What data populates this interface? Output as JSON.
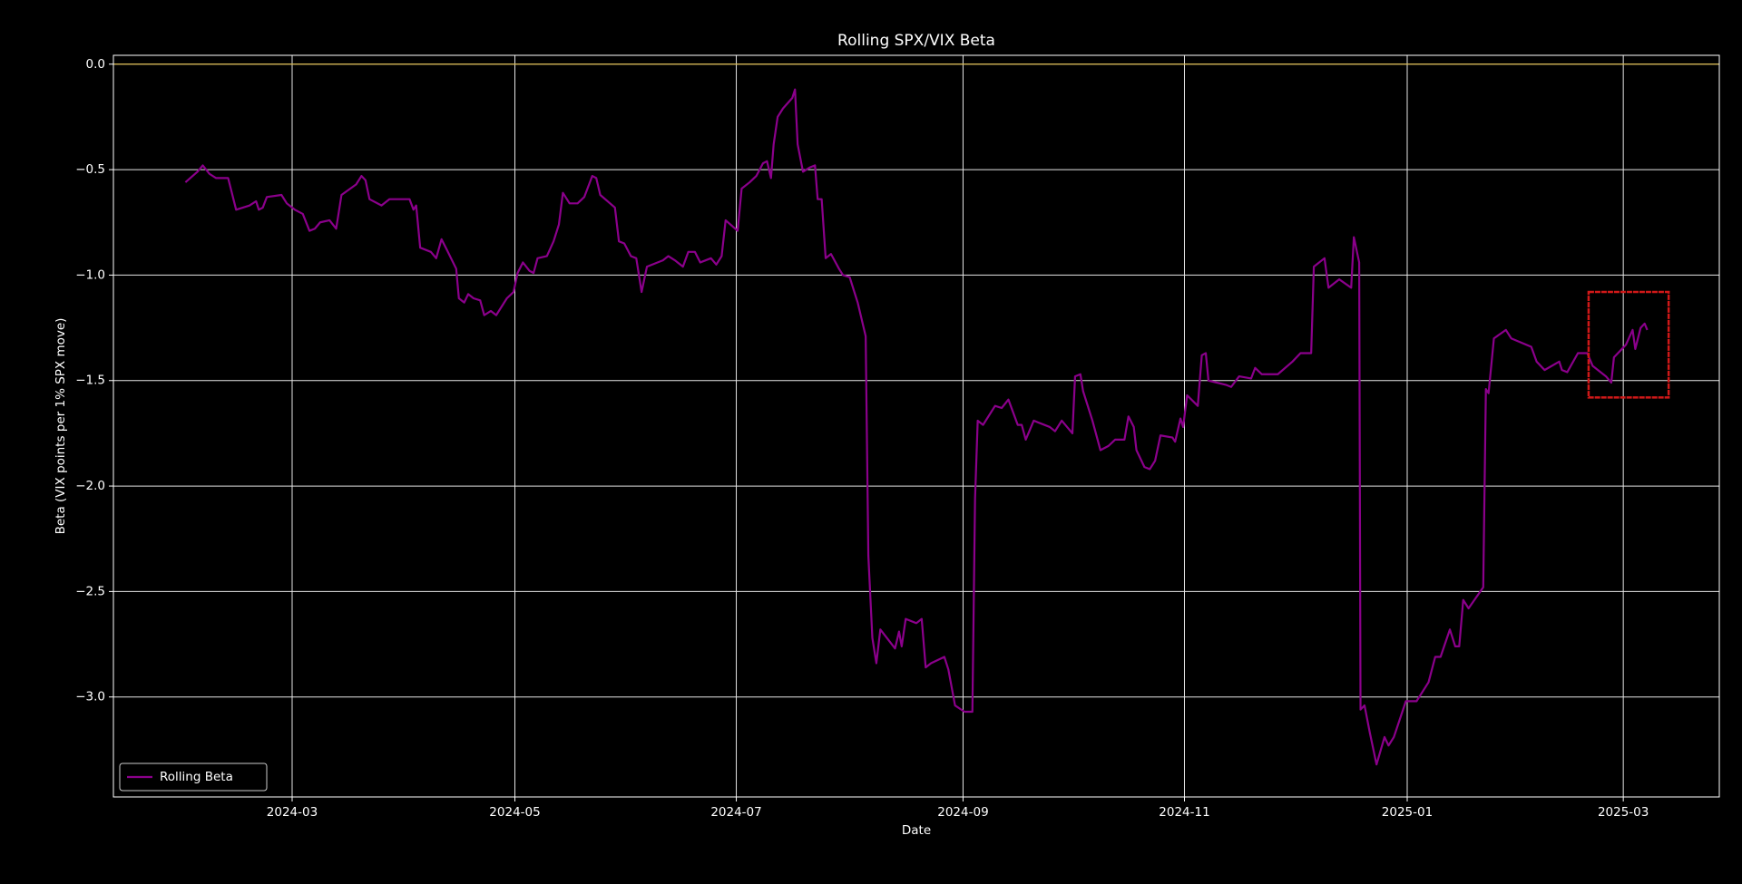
{
  "chart_data": {
    "type": "line",
    "title": "Rolling SPX/VIX Beta",
    "xlabel": "Date",
    "ylabel": "Beta (VIX points per 1% SPX move)",
    "xlim": [
      2024.03,
      2025.234
    ],
    "ylim": [
      -3.474,
      0.042
    ],
    "xticks": [
      {
        "value": 2024.164,
        "label": "2024-03"
      },
      {
        "value": 2024.331,
        "label": "2024-05"
      },
      {
        "value": 2024.497,
        "label": "2024-07"
      },
      {
        "value": 2024.667,
        "label": "2024-09"
      },
      {
        "value": 2024.833,
        "label": "2024-11"
      },
      {
        "value": 2025.0,
        "label": "2025-01"
      },
      {
        "value": 2025.162,
        "label": "2025-03"
      }
    ],
    "yticks": [
      {
        "value": 0,
        "label": "0.0"
      },
      {
        "value": -0.5,
        "label": "−0.5"
      },
      {
        "value": -1.0,
        "label": "−1.0"
      },
      {
        "value": -1.5,
        "label": "−1.5"
      },
      {
        "value": -2.0,
        "label": "−2.0"
      },
      {
        "value": -2.5,
        "label": "−2.5"
      },
      {
        "value": -3.0,
        "label": "−3.0"
      }
    ],
    "grid": true,
    "legend": "lower left",
    "hline": {
      "value": 0,
      "color": "#d4b44a"
    },
    "highlight": {
      "xlim": [
        2025.136,
        2025.196
      ],
      "ylim": [
        -1.58,
        -1.08
      ],
      "color": "#d01818"
    },
    "x": [
      2024.084,
      2024.093,
      2024.097,
      2024.102,
      2024.107,
      2024.116,
      2024.12,
      2024.122,
      2024.132,
      2024.137,
      2024.139,
      2024.142,
      2024.145,
      2024.156,
      2024.16,
      2024.166,
      2024.172,
      2024.177,
      2024.181,
      2024.185,
      2024.192,
      2024.197,
      2024.201,
      2024.212,
      2024.216,
      2024.219,
      2024.222,
      2024.231,
      2024.237,
      2024.252,
      2024.255,
      2024.257,
      2024.26,
      2024.268,
      2024.272,
      2024.276,
      2024.28,
      2024.287,
      2024.289,
      2024.293,
      2024.296,
      2024.3,
      2024.305,
      2024.308,
      2024.313,
      2024.317,
      2024.325,
      2024.33,
      2024.333,
      2024.337,
      2024.342,
      2024.345,
      2024.348,
      2024.355,
      2024.36,
      2024.364,
      2024.367,
      2024.372,
      2024.378,
      2024.383,
      2024.389,
      2024.392,
      2024.395,
      2024.406,
      2024.409,
      2024.413,
      2024.418,
      2024.422,
      2024.426,
      2024.43,
      2024.442,
      2024.446,
      2024.451,
      2024.457,
      2024.461,
      2024.466,
      2024.47,
      2024.478,
      2024.482,
      2024.486,
      2024.489,
      2024.498,
      2024.501,
      2024.507,
      2024.512,
      2024.517,
      2024.52,
      2024.523,
      2024.525,
      2024.528,
      2024.532,
      2024.539,
      2024.541,
      2024.543,
      2024.547,
      2024.552,
      2024.556,
      2024.558,
      2024.561,
      2024.564,
      2024.568,
      2024.574,
      2024.577,
      2024.582,
      2024.588,
      2024.594,
      2024.596,
      2024.599,
      2024.602,
      2024.605,
      2024.616,
      2024.619,
      2024.621,
      2024.624,
      2024.632,
      2024.636,
      2024.639,
      2024.643,
      2024.653,
      2024.656,
      2024.661,
      2024.668,
      2024.674,
      2024.676,
      2024.678,
      2024.682,
      2024.691,
      2024.696,
      2024.701,
      2024.708,
      2024.711,
      2024.714,
      2024.72,
      2024.732,
      2024.736,
      2024.741,
      2024.749,
      2024.751,
      2024.755,
      2024.757,
      2024.764,
      2024.77,
      2024.776,
      2024.781,
      2024.788,
      2024.791,
      2024.795,
      2024.797,
      2024.803,
      2024.807,
      2024.811,
      2024.815,
      2024.824,
      2024.826,
      2024.83,
      2024.832,
      2024.835,
      2024.843,
      2024.846,
      2024.849,
      2024.851,
      2024.864,
      2024.868,
      2024.874,
      2024.883,
      2024.886,
      2024.891,
      2024.903,
      2024.914,
      2024.92,
      2024.928,
      2024.93,
      2024.938,
      2024.941,
      2024.949,
      2024.958,
      2024.96,
      2024.964,
      2024.965,
      2024.968,
      2024.972,
      2024.977,
      2024.983,
      2024.986,
      2024.99,
      2024.999,
      2025.007,
      2025.011,
      2025.016,
      2025.021,
      2025.025,
      2025.032,
      2025.036,
      2025.039,
      2025.042,
      2025.046,
      2025.057,
      2025.059,
      2025.061,
      2025.065,
      2025.074,
      2025.078,
      2025.093,
      2025.097,
      2025.103,
      2025.114,
      2025.116,
      2025.12,
      2025.128,
      2025.135,
      2025.139,
      2025.149,
      2025.153,
      2025.155,
      2025.164,
      2025.169,
      2025.171,
      2025.175,
      2025.178,
      2025.18
    ],
    "series": [
      {
        "name": "Rolling Beta",
        "color": "#8b008b",
        "values": [
          -0.56,
          -0.51,
          -0.48,
          -0.52,
          -0.54,
          -0.54,
          -0.64,
          -0.69,
          -0.67,
          -0.65,
          -0.69,
          -0.68,
          -0.63,
          -0.62,
          -0.66,
          -0.69,
          -0.71,
          -0.79,
          -0.78,
          -0.75,
          -0.74,
          -0.78,
          -0.62,
          -0.57,
          -0.53,
          -0.55,
          -0.64,
          -0.67,
          -0.64,
          -0.64,
          -0.69,
          -0.67,
          -0.87,
          -0.89,
          -0.92,
          -0.83,
          -0.88,
          -0.97,
          -1.11,
          -1.13,
          -1.09,
          -1.11,
          -1.12,
          -1.19,
          -1.17,
          -1.19,
          -1.11,
          -1.08,
          -0.99,
          -0.94,
          -0.98,
          -0.99,
          -0.92,
          -0.91,
          -0.84,
          -0.76,
          -0.61,
          -0.66,
          -0.66,
          -0.63,
          -0.53,
          -0.54,
          -0.62,
          -0.68,
          -0.84,
          -0.85,
          -0.91,
          -0.92,
          -1.08,
          -0.96,
          -0.93,
          -0.91,
          -0.93,
          -0.96,
          -0.89,
          -0.89,
          -0.94,
          -0.92,
          -0.95,
          -0.91,
          -0.74,
          -0.79,
          -0.59,
          -0.56,
          -0.53,
          -0.47,
          -0.46,
          -0.54,
          -0.38,
          -0.25,
          -0.21,
          -0.16,
          -0.12,
          -0.38,
          -0.51,
          -0.49,
          -0.48,
          -0.64,
          -0.64,
          -0.92,
          -0.9,
          -0.97,
          -1.0,
          -1.01,
          -1.13,
          -1.29,
          -2.33,
          -2.72,
          -2.84,
          -2.68,
          -2.77,
          -2.69,
          -2.76,
          -2.63,
          -2.65,
          -2.63,
          -2.86,
          -2.84,
          -2.81,
          -2.87,
          -3.04,
          -3.07,
          -3.07,
          -2.06,
          -1.69,
          -1.71,
          -1.62,
          -1.63,
          -1.59,
          -1.71,
          -1.71,
          -1.78,
          -1.69,
          -1.72,
          -1.74,
          -1.69,
          -1.75,
          -1.48,
          -1.47,
          -1.55,
          -1.69,
          -1.83,
          -1.81,
          -1.78,
          -1.78,
          -1.67,
          -1.72,
          -1.83,
          -1.91,
          -1.92,
          -1.88,
          -1.76,
          -1.77,
          -1.79,
          -1.68,
          -1.72,
          -1.57,
          -1.62,
          -1.38,
          -1.37,
          -1.5,
          -1.52,
          -1.53,
          -1.48,
          -1.49,
          -1.44,
          -1.47,
          -1.47,
          -1.41,
          -1.37,
          -1.37,
          -0.96,
          -0.92,
          -1.06,
          -1.02,
          -1.06,
          -0.82,
          -0.94,
          -3.06,
          -3.04,
          -3.17,
          -3.32,
          -3.19,
          -3.23,
          -3.19,
          -3.02,
          -3.02,
          -2.98,
          -2.93,
          -2.81,
          -2.81,
          -2.68,
          -2.76,
          -2.76,
          -2.54,
          -2.58,
          -2.48,
          -1.54,
          -1.56,
          -1.3,
          -1.26,
          -1.3,
          -1.34,
          -1.41,
          -1.45,
          -1.41,
          -1.45,
          -1.46,
          -1.37,
          -1.37,
          -1.43,
          -1.48,
          -1.51,
          -1.39,
          -1.33,
          -1.26,
          -1.35,
          -1.25,
          -1.23,
          -1.26
        ]
      }
    ]
  }
}
